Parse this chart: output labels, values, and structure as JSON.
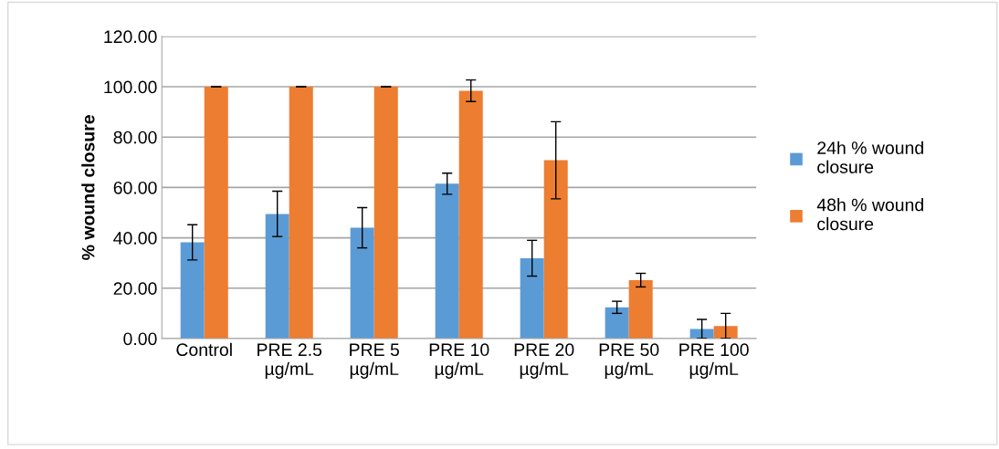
{
  "chart_data": {
    "type": "bar",
    "ylabel": "% wound closure",
    "categories": [
      "Control",
      "PRE 2.5\nµg/mL",
      "PRE 5\nµg/mL",
      "PRE 10\nµg/mL",
      "PRE 20\nµg/mL",
      "PRE 50\nµg/mL",
      "PRE 100\nµg/mL"
    ],
    "series": [
      {
        "name": "24h % wound closure",
        "color": "#5b9bd5",
        "values": [
          38.2,
          49.5,
          44.0,
          61.5,
          31.9,
          12.4,
          3.8
        ],
        "errors": [
          7.0,
          9.0,
          8.0,
          4.2,
          7.1,
          2.4,
          3.8
        ]
      },
      {
        "name": "48h % wound closure",
        "color": "#ed7d31",
        "values": [
          100,
          100,
          100,
          98.4,
          70.8,
          23.2,
          5.0
        ],
        "errors": [
          0,
          0,
          0,
          4.3,
          15.3,
          2.7,
          5.0
        ]
      }
    ],
    "ylim": [
      0,
      120
    ],
    "yticks": [
      {
        "value": 0,
        "label": "0.00"
      },
      {
        "value": 20,
        "label": "20.00"
      },
      {
        "value": 40,
        "label": "40.00"
      },
      {
        "value": 60,
        "label": "60.00"
      },
      {
        "value": 80,
        "label": "80.00"
      },
      {
        "value": 100,
        "label": "100.00"
      },
      {
        "value": 120,
        "label": "120.00"
      }
    ],
    "grid": "y",
    "legend": "right"
  }
}
